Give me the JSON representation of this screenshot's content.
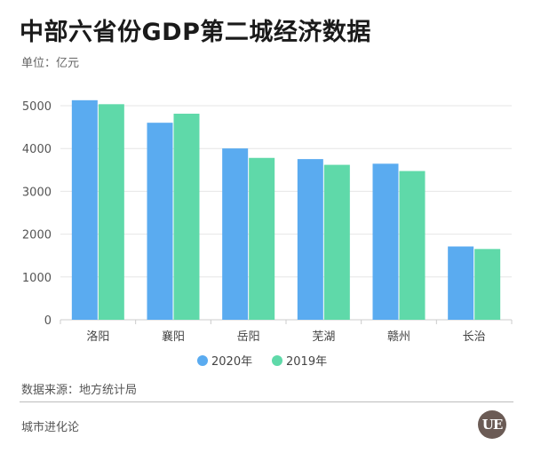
{
  "header": {
    "title": "中部六省份GDP第二城经济数据",
    "unit": "单位：亿元"
  },
  "footer": {
    "source": "数据来源：地方统计局",
    "brand": "城市进化论",
    "logo_text": "UE"
  },
  "colors": {
    "series_2020": "#5aabf0",
    "series_2019": "#5fd9a9",
    "grid": "#e6e6e6",
    "axis": "#cccccc"
  },
  "chart_data": {
    "type": "bar",
    "title": "中部六省份GDP第二城经济数据",
    "ylabel": "单位：亿元",
    "categories": [
      "洛阳",
      "襄阳",
      "岳阳",
      "芜湖",
      "赣州",
      "长治"
    ],
    "series": [
      {
        "name": "2020年",
        "values": [
          5128,
          4602,
          4002,
          3753,
          3645,
          1712
        ]
      },
      {
        "name": "2019年",
        "values": [
          5035,
          4813,
          3781,
          3619,
          3474,
          1653
        ]
      }
    ],
    "ylim": [
      0,
      5000
    ],
    "yticks": [
      0,
      1000,
      2000,
      3000,
      4000,
      5000
    ],
    "grid": true,
    "legend_position": "bottom-center"
  }
}
